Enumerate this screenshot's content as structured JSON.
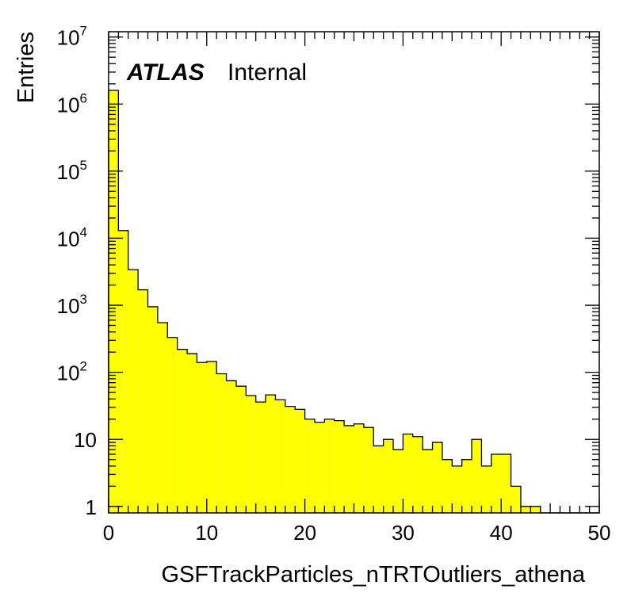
{
  "chart_data": {
    "type": "bar",
    "title": "",
    "xlabel": "GSFTrackParticles_nTRTOutliers_athena",
    "ylabel": "Entries",
    "xlim": [
      0,
      50
    ],
    "ylim": [
      0.8,
      12000000
    ],
    "y_scale": "log",
    "bin_width": 1,
    "fill_color": "#ffff00",
    "line_color": "#000000",
    "x_tick_labels": [
      "0",
      "10",
      "20",
      "30",
      "40",
      "50"
    ],
    "y_tick_labels": [
      {
        "base": "1",
        "exp": ""
      },
      {
        "base": "10",
        "exp": ""
      },
      {
        "base": "10",
        "exp": "2"
      },
      {
        "base": "10",
        "exp": "3"
      },
      {
        "base": "10",
        "exp": "4"
      },
      {
        "base": "10",
        "exp": "5"
      },
      {
        "base": "10",
        "exp": "6"
      },
      {
        "base": "10",
        "exp": "7"
      }
    ],
    "bin_edges_start": 0,
    "values": [
      1600000,
      13000,
      3400,
      1700,
      950,
      550,
      330,
      220,
      190,
      140,
      145,
      95,
      75,
      62,
      45,
      36,
      46,
      39,
      31,
      28,
      20,
      18,
      20,
      19,
      16,
      17,
      15,
      8,
      10,
      7,
      12,
      11,
      7,
      9,
      5,
      4,
      5,
      10,
      4,
      6,
      6,
      2,
      1,
      1,
      0,
      0,
      0,
      0,
      0,
      0
    ]
  },
  "labels": {
    "atlas": "ATLAS",
    "internal": "Internal"
  }
}
